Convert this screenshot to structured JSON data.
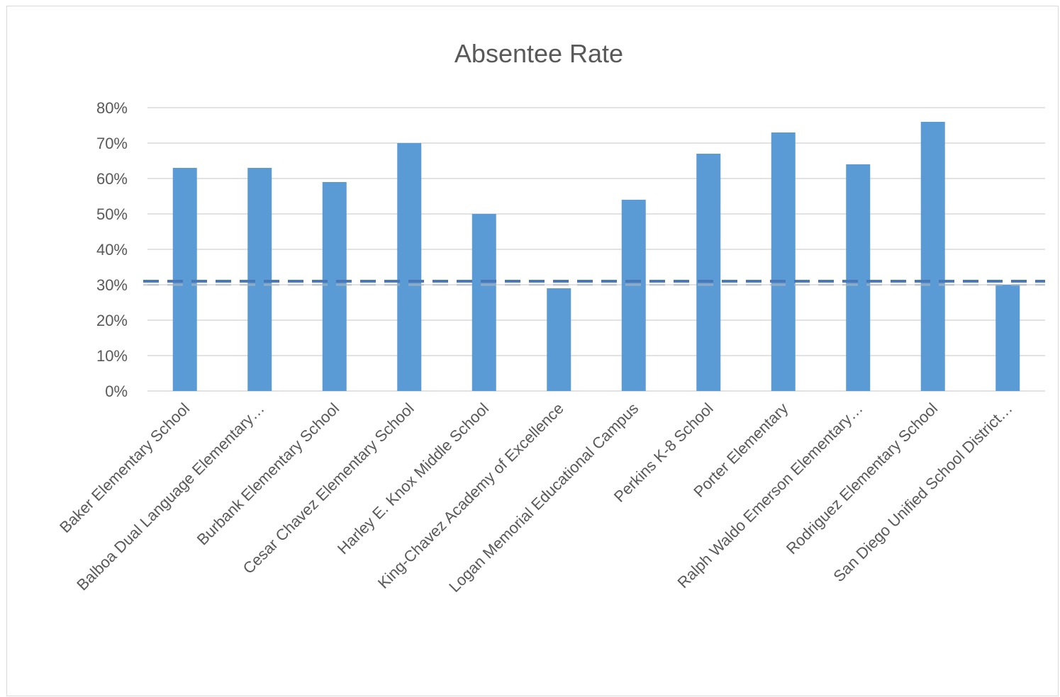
{
  "chart_data": {
    "type": "bar",
    "title": "Absentee Rate",
    "xlabel": "",
    "ylabel": "",
    "ylim": [
      0,
      0.8
    ],
    "yticks": [
      "0%",
      "10%",
      "20%",
      "30%",
      "40%",
      "50%",
      "60%",
      "70%",
      "80%"
    ],
    "grid": true,
    "legend": "none",
    "categories": [
      "Baker Elementary School",
      "Balboa Dual Language Elementary…",
      "Burbank Elementary School",
      "Cesar Chavez Elementary School",
      "Harley E. Knox Middle School",
      "King-Chavez Academy of Excellence",
      "Logan Memorial Educational Campus",
      "Perkins K-8 School",
      "Porter Elementary",
      "Ralph Waldo Emerson Elementary…",
      "Rodriguez Elementary School",
      "San Diego Unified School District…"
    ],
    "values": [
      0.63,
      0.63,
      0.59,
      0.7,
      0.5,
      0.29,
      0.54,
      0.67,
      0.73,
      0.64,
      0.76,
      0.3
    ],
    "reference_line": {
      "value": 0.31,
      "style": "dashed"
    },
    "colors": {
      "bar": "#5b9bd5",
      "reference": "#4a78b8",
      "grid": "#d9d9d9",
      "text": "#595959"
    }
  }
}
